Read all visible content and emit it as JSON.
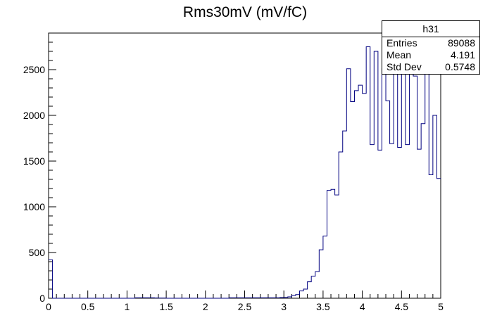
{
  "title": "Rms30mV (mV/fC)",
  "stats": {
    "name": "h31",
    "rows": [
      {
        "label": "Entries",
        "value": "89088"
      },
      {
        "label": "Mean",
        "value": "4.191"
      },
      {
        "label": "Std Dev",
        "value": "0.5748"
      }
    ]
  },
  "colors": {
    "line": "#000080",
    "axis": "#000000",
    "background": "#ffffff"
  },
  "chart_data": {
    "type": "bar",
    "title": "Rms30mV (mV/fC)",
    "xlabel": "",
    "ylabel": "",
    "xlim": [
      0,
      5
    ],
    "ylim": [
      0,
      2900
    ],
    "grid": false,
    "legend": "stats box top-right",
    "x_ticks": [
      "0",
      "0.5",
      "1",
      "1.5",
      "2",
      "2.5",
      "3",
      "3.5",
      "4",
      "4.5",
      "5"
    ],
    "y_ticks": [
      "0",
      "500",
      "1000",
      "1500",
      "2000",
      "2500"
    ],
    "bin_width": 0.05,
    "series": [
      {
        "bin_low_edges": [
          0,
          0.05,
          0.1,
          0.15,
          0.2,
          0.25,
          0.3,
          0.35,
          0.4,
          0.45,
          0.5,
          0.55,
          0.6,
          0.65,
          0.7,
          0.75,
          0.8,
          0.85,
          0.9,
          0.95,
          1,
          1.05,
          1.1,
          1.15,
          1.2,
          1.25,
          1.3,
          1.35,
          1.4,
          1.45,
          1.5,
          1.55,
          1.6,
          1.65,
          1.7,
          1.75,
          1.8,
          1.85,
          1.9,
          1.95,
          2,
          2.05,
          2.1,
          2.15,
          2.2,
          2.25,
          2.3,
          2.35,
          2.4,
          2.45,
          2.5,
          2.55,
          2.6,
          2.65,
          2.7,
          2.75,
          2.8,
          2.85,
          2.9,
          2.95,
          3,
          3.05,
          3.1,
          3.15,
          3.2,
          3.25,
          3.3,
          3.35,
          3.4,
          3.45,
          3.5,
          3.55,
          3.6,
          3.65,
          3.7,
          3.75,
          3.8,
          3.85,
          3.9,
          3.95,
          4,
          4.05,
          4.1,
          4.15,
          4.2,
          4.25,
          4.3,
          4.35,
          4.4,
          4.45,
          4.5,
          4.55,
          4.6,
          4.65,
          4.7,
          4.75,
          4.8,
          4.85,
          4.9,
          4.95
        ],
        "values": [
          420,
          0,
          0,
          0,
          0,
          0,
          0,
          0,
          0,
          0,
          0,
          0,
          0,
          0,
          0,
          0,
          0,
          0,
          0,
          0,
          0,
          0,
          5,
          5,
          5,
          5,
          5,
          3,
          2,
          2,
          0,
          0,
          0,
          0,
          0,
          0,
          0,
          0,
          0,
          0,
          0,
          0,
          0,
          0,
          0,
          0,
          5,
          5,
          5,
          5,
          5,
          5,
          5,
          5,
          5,
          5,
          5,
          5,
          5,
          8,
          10,
          15,
          30,
          40,
          80,
          100,
          180,
          240,
          290,
          530,
          680,
          1180,
          1190,
          1130,
          1600,
          1830,
          2510,
          2150,
          2270,
          2330,
          2240,
          2750,
          1680,
          2700,
          1620,
          2510,
          2160,
          1690,
          2460,
          1650,
          2570,
          1680,
          2540,
          2430,
          1630,
          1910,
          2600,
          1350,
          2000,
          1310
        ]
      }
    ]
  }
}
